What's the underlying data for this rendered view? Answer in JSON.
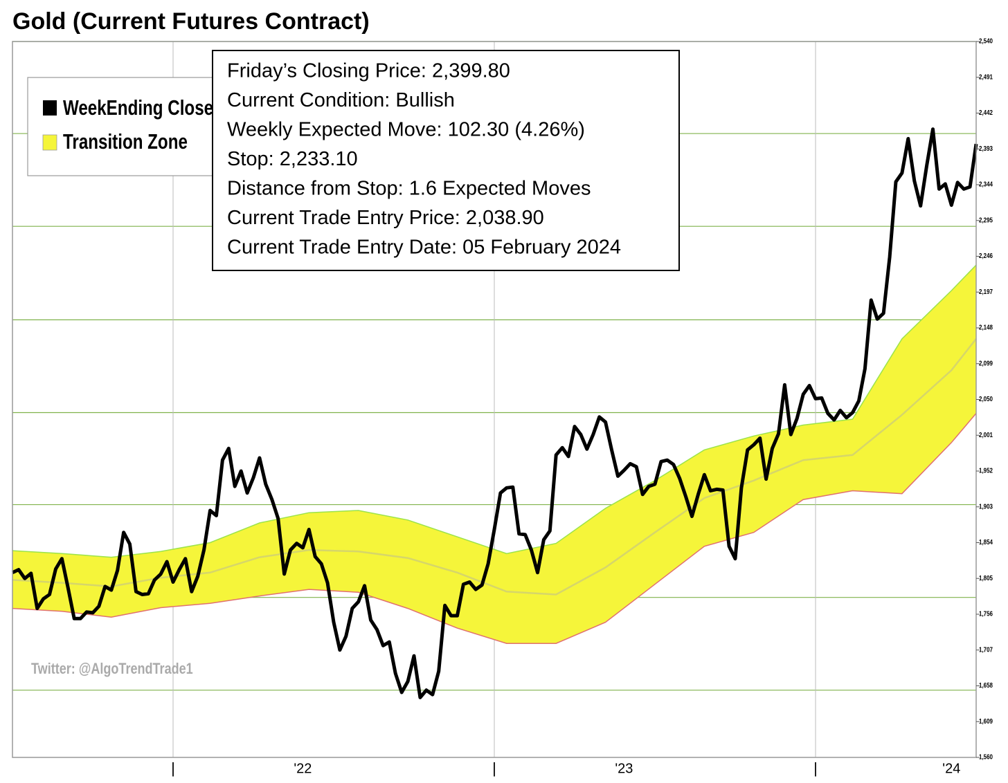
{
  "chart_data": {
    "type": "line",
    "title": "Gold (Current Futures Contract)",
    "series": [
      {
        "name": "WeekEnding Close",
        "color": "#000000",
        "values": [
          1813,
          1817,
          1805,
          1812,
          1764,
          1777,
          1783,
          1818,
          1832,
          1792,
          1750,
          1750,
          1759,
          1758,
          1767,
          1794,
          1789,
          1816,
          1868,
          1852,
          1787,
          1783,
          1784,
          1803,
          1811,
          1828,
          1800,
          1817,
          1832,
          1787,
          1808,
          1844,
          1898,
          1891,
          1967,
          1983,
          1931,
          1952,
          1922,
          1943,
          1970,
          1934,
          1913,
          1887,
          1811,
          1844,
          1853,
          1847,
          1872,
          1835,
          1825,
          1799,
          1745,
          1707,
          1726,
          1764,
          1773,
          1795,
          1748,
          1735,
          1713,
          1718,
          1675,
          1649,
          1664,
          1699,
          1642,
          1652,
          1646,
          1678,
          1768,
          1754,
          1754,
          1797,
          1800,
          1790,
          1796,
          1825,
          1872,
          1922,
          1929,
          1930,
          1866,
          1865,
          1844,
          1813,
          1858,
          1870,
          1974,
          1984,
          1972,
          2013,
          2002,
          1982,
          2002,
          2026,
          2019,
          1981,
          1945,
          1953,
          1962,
          1958,
          1920,
          1931,
          1934,
          1965,
          1967,
          1961,
          1942,
          1917,
          1890,
          1920,
          1947,
          1925,
          1927,
          1926,
          1849,
          1832,
          1929,
          1981,
          1988,
          1997,
          1941,
          1983,
          2003,
          2070,
          2002,
          2024,
          2057,
          2069,
          2051,
          2052,
          2031,
          2022,
          2035,
          2025,
          2032,
          2048,
          2092,
          2186,
          2160,
          2168,
          2245,
          2348,
          2360,
          2407,
          2349,
          2315,
          2370,
          2420,
          2338,
          2345,
          2316,
          2347,
          2338,
          2341,
          2399.8
        ]
      }
    ],
    "band": {
      "name": "Transition Zone",
      "color": "#f5f53a",
      "upper_color": "#9be34a",
      "middle_color": "#d6d66a",
      "lower_color": "#e07070",
      "x": [
        0,
        8,
        16,
        24,
        32,
        40,
        48,
        56,
        64,
        72,
        80,
        88,
        96,
        104,
        112,
        120,
        128,
        136,
        144,
        152,
        156
      ],
      "upper": [
        1843,
        1839,
        1834,
        1842,
        1854,
        1881,
        1895,
        1898,
        1885,
        1862,
        1839,
        1853,
        1901,
        1939,
        1981,
        2000,
        2015,
        2023,
        2133,
        2199,
        2234
      ],
      "middle": [
        1803,
        1799,
        1794,
        1806,
        1813,
        1834,
        1844,
        1842,
        1833,
        1813,
        1787,
        1783,
        1820,
        1868,
        1915,
        1939,
        1967,
        1974,
        2029,
        2090,
        2133
      ],
      "lower": [
        1764,
        1760,
        1752,
        1765,
        1771,
        1781,
        1790,
        1786,
        1764,
        1737,
        1716,
        1716,
        1745,
        1797,
        1849,
        1868,
        1913,
        1925,
        1921,
        1991,
        2031
      ]
    },
    "xlim": [
      0,
      156
    ],
    "xticks": [
      {
        "value": 26,
        "label": "|"
      },
      {
        "value": 78,
        "label": "|"
      },
      {
        "value": 130,
        "label": "|"
      }
    ],
    "xlabels": [
      {
        "value": 47,
        "label": "'22"
      },
      {
        "value": 99,
        "label": "'23"
      },
      {
        "value": 152,
        "label": "'24"
      }
    ],
    "ylim": [
      1560,
      2540
    ],
    "yticks": [
      {
        "value": 1560,
        "label": "1,560"
      },
      {
        "value": 1609,
        "label": "1,609"
      },
      {
        "value": 1658,
        "label": "1,658"
      },
      {
        "value": 1707,
        "label": "1,707"
      },
      {
        "value": 1756,
        "label": "1,756"
      },
      {
        "value": 1805,
        "label": "1,805"
      },
      {
        "value": 1854,
        "label": "1,854"
      },
      {
        "value": 1903,
        "label": "1,903"
      },
      {
        "value": 1952,
        "label": "1,952"
      },
      {
        "value": 2001,
        "label": "2,001"
      },
      {
        "value": 2050,
        "label": "2,050"
      },
      {
        "value": 2099,
        "label": "2,099"
      },
      {
        "value": 2148,
        "label": "2,148"
      },
      {
        "value": 2197,
        "label": "2,197"
      },
      {
        "value": 2246,
        "label": "2,246"
      },
      {
        "value": 2295,
        "label": "2,295"
      },
      {
        "value": 2344,
        "label": "2,344"
      },
      {
        "value": 2393,
        "label": "2,393"
      },
      {
        "value": 2442,
        "label": "2,442"
      },
      {
        "value": 2491,
        "label": "2,491"
      },
      {
        "value": 2540,
        "label": "2,540"
      }
    ],
    "ygrid": [
      1652,
      1779,
      1906,
      2032,
      2159,
      2287,
      2414,
      2540
    ],
    "grid_color": "#7fb24a",
    "info": [
      "Friday’s Closing Price: 2,399.80",
      "Current Condition: Bullish",
      "Weekly Expected Move: 102.30 (4.26%)",
      "Stop: 2,233.10",
      "Distance from Stop: 1.6 Expected Moves",
      "Current Trade Entry Price: 2,038.90",
      "Current Trade Entry Date: 05 February 2024"
    ],
    "watermark": "Twitter: @AlgoTrendTrade1"
  }
}
